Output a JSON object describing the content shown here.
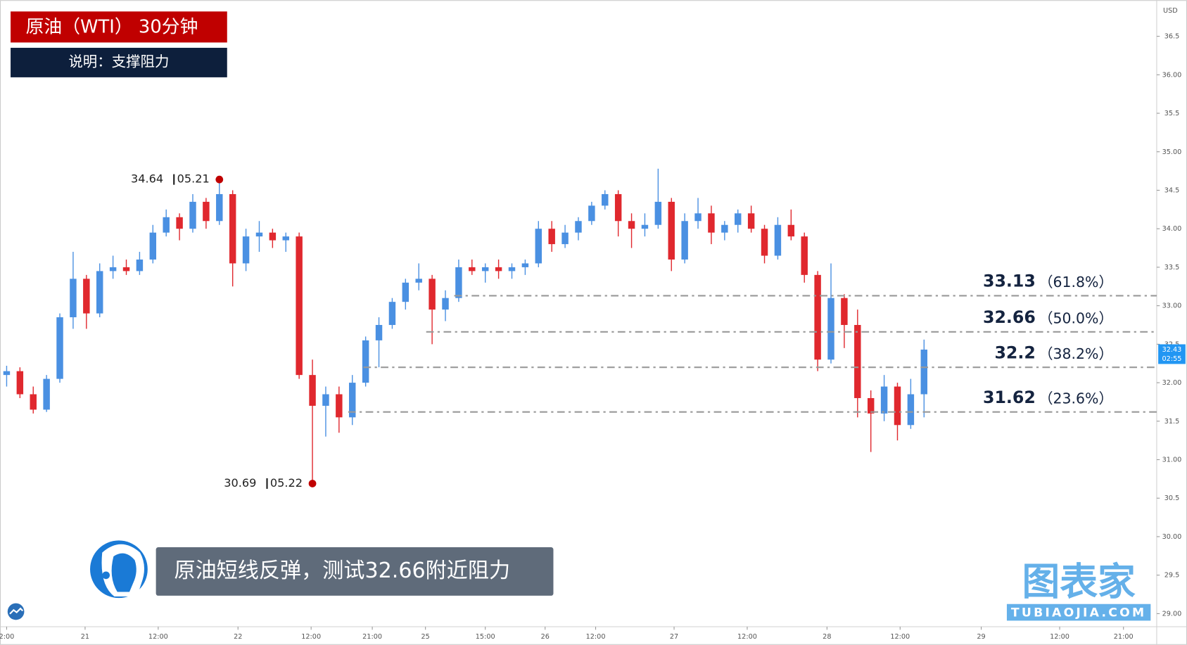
{
  "header": {
    "title": "原油（WTI） 30分钟",
    "subtitle": "说明：支撑阻力"
  },
  "caption": "原油短线反弹，测试32.66附近阻力",
  "logo": {
    "name": "图表家",
    "url": "TUBIAOJIA.COM"
  },
  "chart_data": {
    "type": "candlestick",
    "currency": "USD",
    "up_color": "#4a90e2",
    "down_color": "#e0282e",
    "x": [
      0,
      1,
      2,
      3,
      4,
      5,
      6,
      7,
      8,
      9,
      10,
      11,
      12,
      13,
      14,
      15,
      16,
      17,
      18,
      19,
      20,
      21,
      22,
      23,
      24,
      25,
      26,
      27,
      28,
      29,
      30,
      31,
      32,
      33,
      34,
      35,
      36,
      37,
      38,
      39,
      40,
      41,
      42,
      43,
      44,
      45,
      46,
      47,
      48,
      49,
      50,
      51,
      52,
      53,
      54,
      55,
      56,
      57,
      58,
      59,
      60,
      61,
      62,
      63,
      64,
      65,
      66,
      67,
      68,
      69
    ],
    "open": [
      32.1,
      32.15,
      31.85,
      31.65,
      32.05,
      32.85,
      33.35,
      32.9,
      33.45,
      33.5,
      33.45,
      33.6,
      33.95,
      34.15,
      34.0,
      34.35,
      34.1,
      34.45,
      33.55,
      33.9,
      33.95,
      33.85,
      33.9,
      32.1,
      31.7,
      31.85,
      31.55,
      32.0,
      32.55,
      32.75,
      33.05,
      33.3,
      33.35,
      32.95,
      33.1,
      33.5,
      33.45,
      33.5,
      33.45,
      33.5,
      33.55,
      34.0,
      33.8,
      33.95,
      34.1,
      34.3,
      34.45,
      34.1,
      34.0,
      34.05,
      34.35,
      33.6,
      34.1,
      34.2,
      33.95,
      34.05,
      34.2,
      34.0,
      33.65,
      34.05,
      33.9,
      33.4,
      32.3,
      33.1,
      32.75,
      31.8,
      31.6,
      31.95,
      31.45,
      31.85
    ],
    "high": [
      32.22,
      32.2,
      31.95,
      32.1,
      32.9,
      33.7,
      33.4,
      33.55,
      33.65,
      33.6,
      33.7,
      34.05,
      34.25,
      34.2,
      34.45,
      34.4,
      34.64,
      34.5,
      34.0,
      34.1,
      34.0,
      33.95,
      33.95,
      32.3,
      31.95,
      31.95,
      32.1,
      32.6,
      32.85,
      33.1,
      33.35,
      33.55,
      33.4,
      33.2,
      33.6,
      33.6,
      33.55,
      33.6,
      33.55,
      33.6,
      34.1,
      34.1,
      34.05,
      34.15,
      34.35,
      34.5,
      34.5,
      34.2,
      34.2,
      34.78,
      34.4,
      34.2,
      34.4,
      34.3,
      34.1,
      34.25,
      34.3,
      34.05,
      34.15,
      34.25,
      33.95,
      33.45,
      33.55,
      33.15,
      32.95,
      31.9,
      32.1,
      32.0,
      32.05,
      32.56
    ],
    "low": [
      31.95,
      31.8,
      31.6,
      31.62,
      32.0,
      32.7,
      32.7,
      32.85,
      33.35,
      33.4,
      33.4,
      33.55,
      33.9,
      33.85,
      33.95,
      34.0,
      34.05,
      33.25,
      33.45,
      33.7,
      33.75,
      33.7,
      32.05,
      30.69,
      31.3,
      31.35,
      31.45,
      31.95,
      32.2,
      32.7,
      32.95,
      33.2,
      32.5,
      32.8,
      33.05,
      33.4,
      33.3,
      33.35,
      33.35,
      33.4,
      33.5,
      33.7,
      33.75,
      33.85,
      34.05,
      34.25,
      33.9,
      33.75,
      33.9,
      34.0,
      33.45,
      33.55,
      34.0,
      33.8,
      33.85,
      33.95,
      33.95,
      33.55,
      33.6,
      33.85,
      33.3,
      32.15,
      32.25,
      32.45,
      31.55,
      31.1,
      31.5,
      31.25,
      31.4,
      31.55
    ],
    "close": [
      32.15,
      31.85,
      31.65,
      32.05,
      32.85,
      33.35,
      32.9,
      33.45,
      33.5,
      33.45,
      33.6,
      33.95,
      34.15,
      34.0,
      34.35,
      34.1,
      34.45,
      33.55,
      33.9,
      33.95,
      33.85,
      33.9,
      32.1,
      31.7,
      31.85,
      31.55,
      32.0,
      32.55,
      32.75,
      33.05,
      33.3,
      33.35,
      32.95,
      33.1,
      33.5,
      33.45,
      33.5,
      33.45,
      33.5,
      33.55,
      34.0,
      33.8,
      33.95,
      34.1,
      34.3,
      34.45,
      34.1,
      34.0,
      34.05,
      34.35,
      33.6,
      34.1,
      34.2,
      33.95,
      34.05,
      34.2,
      34.0,
      33.65,
      34.05,
      33.9,
      33.4,
      32.3,
      33.1,
      32.75,
      31.8,
      31.6,
      31.95,
      31.45,
      31.85,
      32.43
    ],
    "xlim": [
      -0.5,
      86.5
    ],
    "xticks": [
      {
        "value": 0,
        "label": "2:00"
      },
      {
        "value": 5.9,
        "label": "21"
      },
      {
        "value": 11.4,
        "label": "12:00"
      },
      {
        "value": 17.4,
        "label": "22"
      },
      {
        "value": 22.9,
        "label": "12:00"
      },
      {
        "value": 27.5,
        "label": "21:00"
      },
      {
        "value": 31.5,
        "label": "25"
      },
      {
        "value": 36,
        "label": "15:00"
      },
      {
        "value": 40.5,
        "label": "26"
      },
      {
        "value": 44.3,
        "label": "12:00"
      },
      {
        "value": 50.2,
        "label": "27"
      },
      {
        "value": 55.7,
        "label": "12:00"
      },
      {
        "value": 61.7,
        "label": "28"
      },
      {
        "value": 67.2,
        "label": "12:00"
      },
      {
        "value": 73.3,
        "label": "29"
      },
      {
        "value": 79.2,
        "label": "12:00"
      },
      {
        "value": 84,
        "label": "21:00"
      }
    ],
    "ylim": [
      28.83,
      36.97
    ],
    "yticks": [
      {
        "value": 29,
        "label": "29.00"
      },
      29.5,
      {
        "value": 30,
        "label": "30.00"
      },
      30.5,
      {
        "value": 31,
        "label": "31.00"
      },
      31.5,
      {
        "value": 32,
        "label": "32.00"
      },
      32.5,
      {
        "value": 33,
        "label": "33.00"
      },
      33.5,
      {
        "value": 34,
        "label": "34.00"
      },
      34.5,
      {
        "value": 35,
        "label": "35.00"
      },
      35.5,
      {
        "value": 36,
        "label": "36.00"
      },
      36.5
    ],
    "levels": [
      {
        "value": 33.13,
        "note": "（61.8%）"
      },
      {
        "value": 32.66,
        "note": "（50.0%）"
      },
      {
        "value": 32.2,
        "note": "（38.2%）"
      },
      {
        "value": 31.62,
        "note": "（23.6%）"
      }
    ],
    "annotations": [
      {
        "x": 16,
        "value": 34.64,
        "date": "05.21"
      },
      {
        "x": 23,
        "value": 30.69,
        "date": "05.22"
      }
    ],
    "last_price": 32.43,
    "countdown": "02:55"
  }
}
